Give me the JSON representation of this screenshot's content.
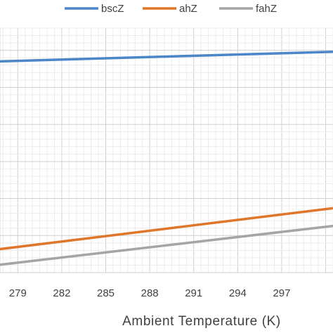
{
  "chart_data": {
    "type": "line",
    "title": "",
    "xlabel": "Ambient Temperature (K)",
    "ylabel": "",
    "x_ticks": [
      279,
      282,
      285,
      288,
      291,
      294,
      297
    ],
    "xlim": [
      277.5,
      300.5
    ],
    "ylim": [
      0,
      330
    ],
    "grid": true,
    "legend_position": "top",
    "series": [
      {
        "name": "bscZ",
        "color": "#4a86c8",
        "x": [
          277.5,
          300.5
        ],
        "y": [
          285,
          298
        ]
      },
      {
        "name": "ahZ",
        "color": "#e0762a",
        "x": [
          277.5,
          300.5
        ],
        "y": [
          31,
          87
        ]
      },
      {
        "name": "fahZ",
        "color": "#a5a5a5",
        "x": [
          277.5,
          300.5
        ],
        "y": [
          10,
          63
        ]
      }
    ]
  }
}
